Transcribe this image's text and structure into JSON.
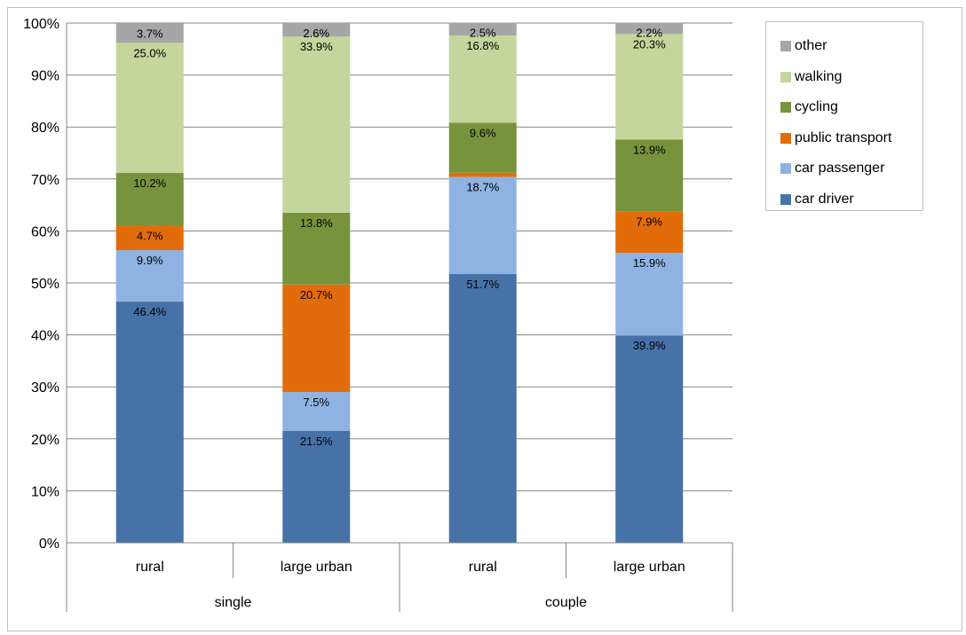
{
  "chart_data": {
    "type": "bar",
    "stacked": true,
    "groups": [
      "single",
      "couple"
    ],
    "categories": [
      "rural",
      "large urban",
      "rural",
      "large urban"
    ],
    "category_groups": [
      "single",
      "single",
      "couple",
      "couple"
    ],
    "ylim": [
      0,
      100
    ],
    "yticks": [
      "0%",
      "10%",
      "20%",
      "30%",
      "40%",
      "50%",
      "60%",
      "70%",
      "80%",
      "90%",
      "100%"
    ],
    "grid": true,
    "legend_position": "top-right",
    "series": [
      {
        "name": "car driver",
        "color": "#4672a8",
        "values": [
          46.4,
          21.5,
          51.7,
          39.9
        ],
        "labels": [
          "46.4%",
          "21.5%",
          "51.7%",
          "39.9%"
        ]
      },
      {
        "name": "car passenger",
        "color": "#8eb3e3",
        "values": [
          9.9,
          7.5,
          18.7,
          15.9
        ],
        "labels": [
          "9.9%",
          "7.5%",
          "18.7%",
          "15.9%"
        ]
      },
      {
        "name": "public transport",
        "color": "#e36c0a",
        "values": [
          4.7,
          20.7,
          0.8,
          7.9
        ],
        "labels": [
          "4.7%",
          "20.7%",
          "",
          "7.9%"
        ]
      },
      {
        "name": "cycling",
        "color": "#77933c",
        "values": [
          10.2,
          13.8,
          9.6,
          13.9
        ],
        "labels": [
          "10.2%",
          "13.8%",
          "9.6%",
          "13.9%"
        ]
      },
      {
        "name": "walking",
        "color": "#c3d69b",
        "values": [
          25.0,
          33.9,
          16.8,
          20.3
        ],
        "labels": [
          "25.0%",
          "33.9%",
          "16.8%",
          "20.3%"
        ]
      },
      {
        "name": "other",
        "color": "#a6a6a6",
        "values": [
          3.7,
          2.6,
          2.5,
          2.2
        ],
        "labels": [
          "3.7%",
          "2.6%",
          "2.5%",
          "2.2%"
        ]
      }
    ]
  }
}
